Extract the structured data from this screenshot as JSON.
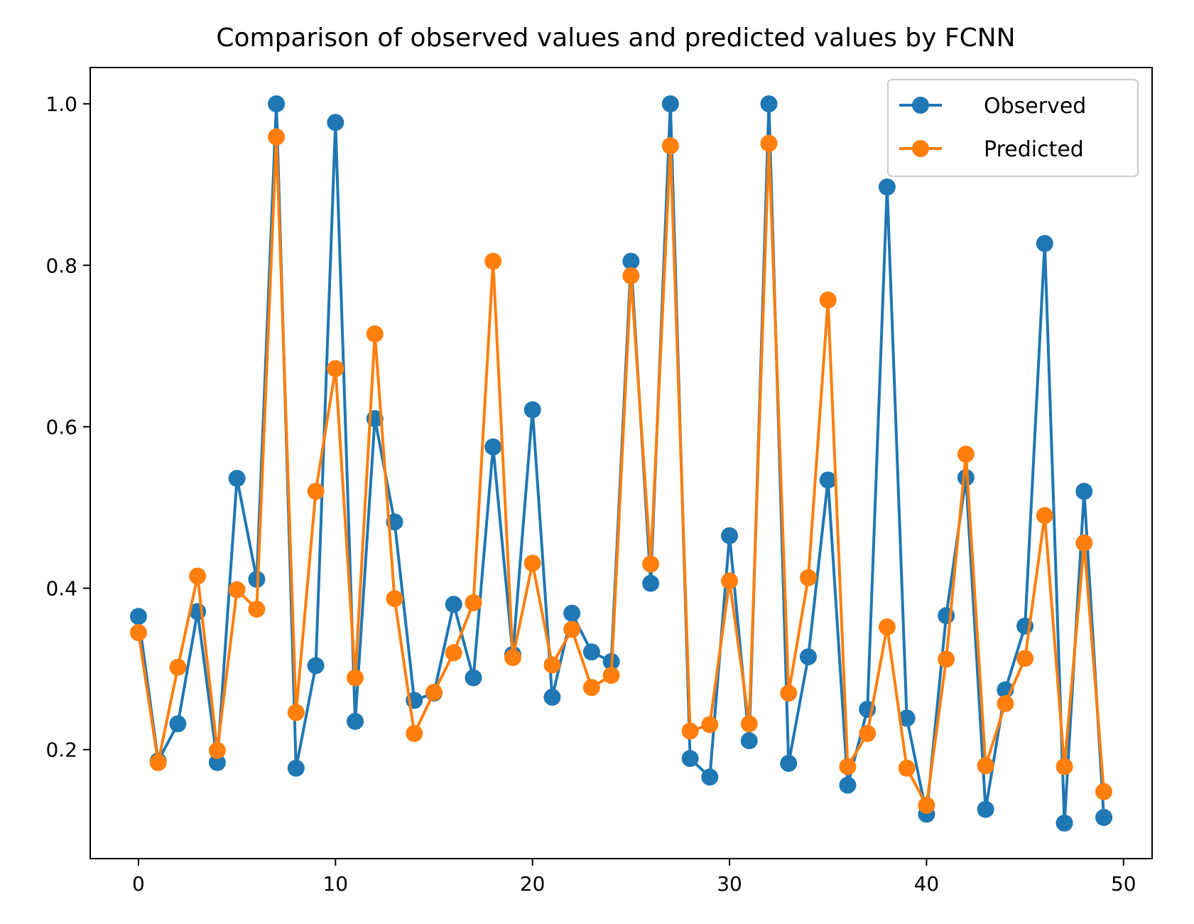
{
  "chart_data": {
    "type": "line",
    "title": "Comparison of observed values and predicted values by FCNN",
    "xlabel": "",
    "ylabel": "",
    "xlim": [
      -2.45,
      51.45
    ],
    "ylim": [
      0.065,
      1.045
    ],
    "x_ticks": [
      0,
      10,
      20,
      30,
      40,
      50
    ],
    "y_ticks": [
      0.2,
      0.4,
      0.6,
      0.8,
      1.0
    ],
    "x_tick_labels": [
      "0",
      "10",
      "20",
      "30",
      "40",
      "50"
    ],
    "y_tick_labels": [
      "0.2",
      "0.4",
      "0.6",
      "0.8",
      "1.0"
    ],
    "grid": false,
    "legend_position": "top-right",
    "x": [
      0,
      1,
      2,
      3,
      4,
      5,
      6,
      7,
      8,
      9,
      10,
      11,
      12,
      13,
      14,
      15,
      16,
      17,
      18,
      19,
      20,
      21,
      22,
      23,
      24,
      25,
      26,
      27,
      28,
      29,
      30,
      31,
      32,
      33,
      34,
      35,
      36,
      37,
      38,
      39,
      40,
      41,
      42,
      43,
      44,
      45,
      46,
      47,
      48,
      49
    ],
    "series": [
      {
        "name": "Observed",
        "color": "#1f77b4",
        "values": [
          0.365,
          0.186,
          0.232,
          0.371,
          0.184,
          0.536,
          0.411,
          1.0,
          0.177,
          0.304,
          0.977,
          0.235,
          0.61,
          0.482,
          0.261,
          0.27,
          0.38,
          0.289,
          0.575,
          0.318,
          0.621,
          0.265,
          0.369,
          0.321,
          0.309,
          0.805,
          0.406,
          1.0,
          0.189,
          0.166,
          0.465,
          0.211,
          1.0,
          0.183,
          0.315,
          0.534,
          0.156,
          0.25,
          0.897,
          0.239,
          0.12,
          0.366,
          0.537,
          0.126,
          0.274,
          0.353,
          0.827,
          0.109,
          0.52,
          0.116
        ]
      },
      {
        "name": "Predicted",
        "color": "#ff7f0e",
        "values": [
          0.345,
          0.184,
          0.302,
          0.415,
          0.199,
          0.398,
          0.374,
          0.959,
          0.246,
          0.52,
          0.672,
          0.289,
          0.715,
          0.387,
          0.22,
          0.271,
          0.32,
          0.382,
          0.805,
          0.314,
          0.431,
          0.305,
          0.349,
          0.277,
          0.292,
          0.787,
          0.43,
          0.948,
          0.223,
          0.231,
          0.409,
          0.232,
          0.951,
          0.27,
          0.413,
          0.757,
          0.179,
          0.22,
          0.352,
          0.177,
          0.131,
          0.312,
          0.566,
          0.18,
          0.257,
          0.313,
          0.49,
          0.179,
          0.456,
          0.148
        ]
      }
    ]
  }
}
